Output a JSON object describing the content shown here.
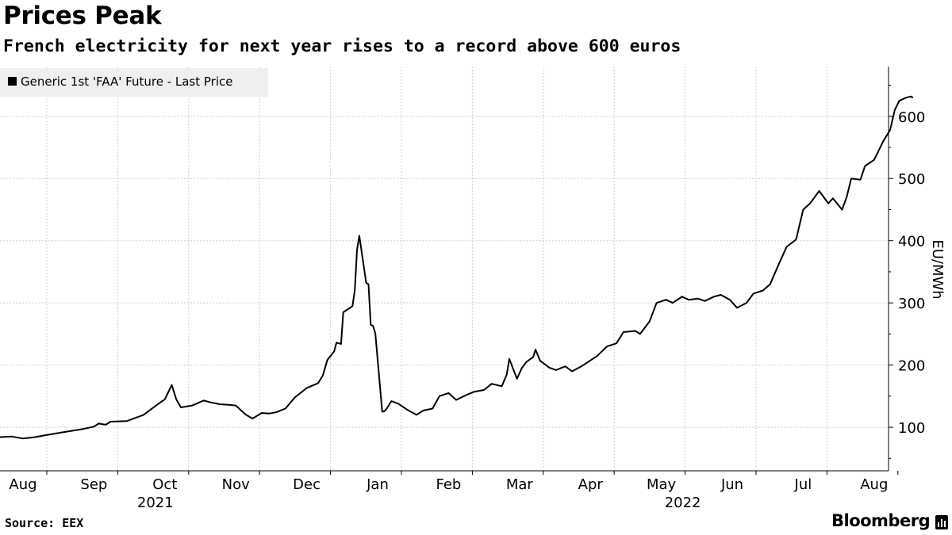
{
  "title": "Prices Peak",
  "subtitle": "French electricity for next year rises to a record above 600 euros",
  "source": "Source: EEX",
  "brand": "Bloomberg",
  "colors": {
    "line": "#000000",
    "grid": "#d0d0d0",
    "legend_bg": "#efefef"
  },
  "chart_data": {
    "type": "line",
    "title": "Prices Peak",
    "subtitle": "French electricity for next year rises to a record above 600 euros",
    "legend": [
      "Generic 1st 'FAA' Future - Last Price"
    ],
    "legend_position": "top-left",
    "ylabel": "EU/MWh",
    "y_axis_side": "right",
    "ylim": [
      30,
      680
    ],
    "yticks": [
      100,
      200,
      300,
      400,
      500,
      600
    ],
    "grid": true,
    "month_ticks": [
      "Aug",
      "Sep",
      "Oct",
      "Nov",
      "Dec",
      "Jan",
      "Feb",
      "Mar",
      "Apr",
      "May",
      "Jun",
      "Jul",
      "Aug"
    ],
    "year_labels": [
      {
        "label": "2021",
        "month_index": 2
      },
      {
        "label": "2022",
        "month_index": 9
      }
    ],
    "series": [
      {
        "name": "Generic 1st 'FAA' Future - Last Price",
        "x": [
          "2021-07-21",
          "2021-07-27",
          "2021-08-01",
          "2021-08-06",
          "2021-08-12",
          "2021-08-20",
          "2021-08-27",
          "2021-09-01",
          "2021-09-03",
          "2021-09-06",
          "2021-09-08",
          "2021-09-15",
          "2021-09-22",
          "2021-09-28",
          "2021-10-01",
          "2021-10-04",
          "2021-10-06",
          "2021-10-08",
          "2021-10-13",
          "2021-10-18",
          "2021-10-21",
          "2021-10-25",
          "2021-10-29",
          "2021-11-01",
          "2021-11-05",
          "2021-11-08",
          "2021-11-12",
          "2021-11-15",
          "2021-11-18",
          "2021-11-22",
          "2021-11-26",
          "2021-12-01",
          "2021-12-06",
          "2021-12-08",
          "2021-12-10",
          "2021-12-13",
          "2021-12-14",
          "2021-12-16",
          "2021-12-17",
          "2021-12-20",
          "2021-12-21",
          "2021-12-22",
          "2021-12-23",
          "2021-12-24",
          "2021-12-27",
          "2021-12-28",
          "2021-12-29",
          "2021-12-30",
          "2021-12-31",
          "2022-01-03",
          "2022-01-04",
          "2022-01-05",
          "2022-01-07",
          "2022-01-10",
          "2022-01-14",
          "2022-01-18",
          "2022-01-21",
          "2022-01-25",
          "2022-01-28",
          "2022-02-01",
          "2022-02-04",
          "2022-02-08",
          "2022-02-11",
          "2022-02-15",
          "2022-02-18",
          "2022-02-22",
          "2022-02-24",
          "2022-02-25",
          "2022-02-28",
          "2022-03-02",
          "2022-03-04",
          "2022-03-07",
          "2022-03-08",
          "2022-03-10",
          "2022-03-14",
          "2022-03-17",
          "2022-03-21",
          "2022-03-24",
          "2022-03-28",
          "2022-03-31",
          "2022-04-04",
          "2022-04-08",
          "2022-04-12",
          "2022-04-15",
          "2022-04-20",
          "2022-04-22",
          "2022-04-26",
          "2022-04-29",
          "2022-05-03",
          "2022-05-06",
          "2022-05-10",
          "2022-05-13",
          "2022-05-17",
          "2022-05-20",
          "2022-05-24",
          "2022-05-27",
          "2022-05-31",
          "2022-06-03",
          "2022-06-07",
          "2022-06-10",
          "2022-06-14",
          "2022-06-17",
          "2022-06-21",
          "2022-06-24",
          "2022-06-28",
          "2022-07-01",
          "2022-07-04",
          "2022-07-06",
          "2022-07-08",
          "2022-07-12",
          "2022-07-14",
          "2022-07-18",
          "2022-07-20",
          "2022-07-22",
          "2022-07-26",
          "2022-07-28",
          "2022-08-01",
          "2022-08-03",
          "2022-08-05",
          "2022-08-08",
          "2022-08-10",
          "2022-08-12",
          "2022-08-15",
          "2022-08-17",
          "2022-08-18"
        ],
        "values": [
          84,
          85,
          82,
          84,
          88,
          93,
          97,
          101,
          106,
          104,
          109,
          110,
          120,
          137,
          145,
          168,
          145,
          132,
          135,
          143,
          140,
          137,
          136,
          135,
          121,
          114,
          123,
          122,
          124,
          130,
          148,
          163,
          171,
          183,
          208,
          222,
          236,
          234,
          285,
          292,
          295,
          320,
          385,
          408,
          332,
          330,
          265,
          263,
          251,
          125,
          126,
          130,
          142,
          138,
          128,
          120,
          127,
          130,
          150,
          155,
          144,
          152,
          157,
          160,
          170,
          166,
          185,
          210,
          178,
          195,
          205,
          213,
          225,
          207,
          196,
          192,
          198,
          190,
          198,
          205,
          215,
          230,
          235,
          253,
          255,
          250,
          270,
          300,
          305,
          300,
          310,
          305,
          307,
          303,
          310,
          313,
          305,
          292,
          300,
          315,
          320,
          330,
          365,
          390,
          402,
          450,
          460,
          470,
          480,
          460,
          468,
          450,
          470,
          500,
          498,
          520,
          530,
          545,
          560,
          578,
          610,
          625,
          630,
          632,
          630
        ]
      }
    ]
  }
}
